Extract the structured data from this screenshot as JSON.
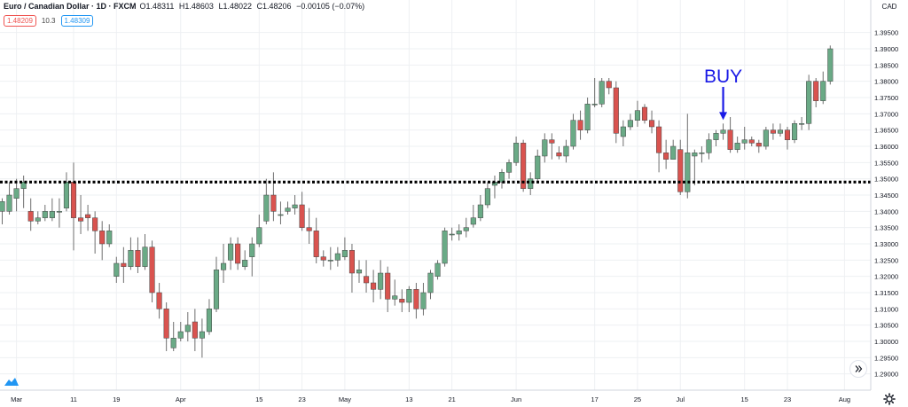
{
  "legend": {
    "symbol": "Euro / Canadian Dollar · 1D · FXCM",
    "ohlc": [
      "O1.48311",
      "H1.48603",
      "L1.48022",
      "C1.48206",
      "−0.00105 (−0.07%)"
    ],
    "bid": "1.48209",
    "spread": "10.3",
    "ask": "1.48309"
  },
  "currency": "CAD",
  "annotation": "BUY",
  "colors": {
    "up": "#6aaa86",
    "down": "#d9534f",
    "wick": "#6e6e6e",
    "grid": "#eef0f3",
    "annotation": "#1a1ae6",
    "level": "#000000"
  },
  "chart_data": {
    "type": "candlestick",
    "y_axis": {
      "min": 1.285,
      "max": 1.405,
      "ticks": [
        "1.39500",
        "1.39000",
        "1.38500",
        "1.38000",
        "1.37500",
        "1.37000",
        "1.36500",
        "1.36000",
        "1.35500",
        "1.35000",
        "1.34500",
        "1.34000",
        "1.33500",
        "1.33000",
        "1.32500",
        "1.32000",
        "1.31500",
        "1.31000",
        "1.30500",
        "1.30000",
        "1.29500",
        "1.29000"
      ]
    },
    "x_ticks": [
      {
        "i": 2,
        "label": "Mar"
      },
      {
        "i": 10,
        "label": "11"
      },
      {
        "i": 16,
        "label": "19"
      },
      {
        "i": 25,
        "label": "Apr"
      },
      {
        "i": 36,
        "label": "15"
      },
      {
        "i": 42,
        "label": "23"
      },
      {
        "i": 48,
        "label": "May"
      },
      {
        "i": 57,
        "label": "13"
      },
      {
        "i": 63,
        "label": "21"
      },
      {
        "i": 72,
        "label": "Jun"
      },
      {
        "i": 83,
        "label": "17"
      },
      {
        "i": 89,
        "label": "25"
      },
      {
        "i": 95,
        "label": "Jul"
      },
      {
        "i": 104,
        "label": "15"
      },
      {
        "i": 110,
        "label": "23"
      },
      {
        "i": 118,
        "label": "Aug"
      }
    ],
    "horizontal_level": 1.349,
    "buy_marker_index": 101,
    "candles": [
      [
        1.34,
        1.343,
        1.336,
        1.344
      ],
      [
        1.34,
        1.345,
        1.339,
        1.349
      ],
      [
        1.344,
        1.347,
        1.34,
        1.35
      ],
      [
        1.347,
        1.349,
        1.341,
        1.351
      ],
      [
        1.34,
        1.337,
        1.334,
        1.344
      ],
      [
        1.337,
        1.338,
        1.336,
        1.34
      ],
      [
        1.338,
        1.34,
        1.337,
        1.342
      ],
      [
        1.338,
        1.34,
        1.337,
        1.344
      ],
      [
        1.34,
        1.34,
        1.335,
        1.344
      ],
      [
        1.341,
        1.349,
        1.34,
        1.352
      ],
      [
        1.349,
        1.338,
        1.328,
        1.355
      ],
      [
        1.338,
        1.337,
        1.333,
        1.345
      ],
      [
        1.339,
        1.338,
        1.334,
        1.342
      ],
      [
        1.338,
        1.334,
        1.327,
        1.34
      ],
      [
        1.334,
        1.33,
        1.325,
        1.337
      ],
      [
        1.33,
        1.334,
        1.329,
        1.336
      ],
      [
        1.32,
        1.324,
        1.318,
        1.326
      ],
      [
        1.324,
        1.323,
        1.318,
        1.329
      ],
      [
        1.323,
        1.328,
        1.322,
        1.332
      ],
      [
        1.328,
        1.323,
        1.321,
        1.332
      ],
      [
        1.323,
        1.329,
        1.322,
        1.333
      ],
      [
        1.329,
        1.315,
        1.312,
        1.331
      ],
      [
        1.315,
        1.31,
        1.307,
        1.318
      ],
      [
        1.31,
        1.301,
        1.297,
        1.312
      ],
      [
        1.298,
        1.301,
        1.297,
        1.306
      ],
      [
        1.301,
        1.303,
        1.3,
        1.306
      ],
      [
        1.303,
        1.305,
        1.3,
        1.309
      ],
      [
        1.306,
        1.301,
        1.297,
        1.31
      ],
      [
        1.301,
        1.303,
        1.295,
        1.307
      ],
      [
        1.303,
        1.31,
        1.302,
        1.313
      ],
      [
        1.31,
        1.322,
        1.309,
        1.326
      ],
      [
        1.322,
        1.324,
        1.318,
        1.33
      ],
      [
        1.325,
        1.33,
        1.322,
        1.332
      ],
      [
        1.33,
        1.324,
        1.322,
        1.332
      ],
      [
        1.323,
        1.325,
        1.322,
        1.328
      ],
      [
        1.326,
        1.33,
        1.32,
        1.332
      ],
      [
        1.33,
        1.335,
        1.329,
        1.339
      ],
      [
        1.337,
        1.345,
        1.336,
        1.35
      ],
      [
        1.345,
        1.34,
        1.337,
        1.352
      ],
      [
        1.339,
        1.339,
        1.336,
        1.343
      ],
      [
        1.34,
        1.341,
        1.339,
        1.343
      ],
      [
        1.341,
        1.342,
        1.339,
        1.345
      ],
      [
        1.342,
        1.335,
        1.334,
        1.346
      ],
      [
        1.335,
        1.334,
        1.33,
        1.341
      ],
      [
        1.334,
        1.326,
        1.324,
        1.338
      ],
      [
        1.326,
        1.325,
        1.323,
        1.328
      ],
      [
        1.325,
        1.325,
        1.322,
        1.329
      ],
      [
        1.325,
        1.327,
        1.323,
        1.329
      ],
      [
        1.326,
        1.328,
        1.325,
        1.332
      ],
      [
        1.328,
        1.321,
        1.315,
        1.33
      ],
      [
        1.321,
        1.322,
        1.318,
        1.325
      ],
      [
        1.32,
        1.318,
        1.315,
        1.325
      ],
      [
        1.318,
        1.316,
        1.312,
        1.322
      ],
      [
        1.316,
        1.321,
        1.313,
        1.325
      ],
      [
        1.321,
        1.313,
        1.309,
        1.323
      ],
      [
        1.313,
        1.314,
        1.311,
        1.319
      ],
      [
        1.313,
        1.312,
        1.309,
        1.316
      ],
      [
        1.312,
        1.316,
        1.309,
        1.317
      ],
      [
        1.316,
        1.31,
        1.307,
        1.318
      ],
      [
        1.31,
        1.315,
        1.308,
        1.318
      ],
      [
        1.315,
        1.321,
        1.313,
        1.322
      ],
      [
        1.32,
        1.324,
        1.319,
        1.325
      ],
      [
        1.324,
        1.334,
        1.323,
        1.335
      ],
      [
        1.333,
        1.333,
        1.331,
        1.335
      ],
      [
        1.333,
        1.334,
        1.331,
        1.336
      ],
      [
        1.334,
        1.335,
        1.332,
        1.338
      ],
      [
        1.336,
        1.338,
        1.335,
        1.342
      ],
      [
        1.338,
        1.342,
        1.337,
        1.345
      ],
      [
        1.342,
        1.347,
        1.341,
        1.349
      ],
      [
        1.348,
        1.349,
        1.344,
        1.351
      ],
      [
        1.349,
        1.352,
        1.347,
        1.353
      ],
      [
        1.352,
        1.355,
        1.35,
        1.356
      ],
      [
        1.355,
        1.361,
        1.354,
        1.363
      ],
      [
        1.361,
        1.347,
        1.346,
        1.362
      ],
      [
        1.347,
        1.35,
        1.345,
        1.352
      ],
      [
        1.35,
        1.357,
        1.349,
        1.359
      ],
      [
        1.357,
        1.362,
        1.355,
        1.364
      ],
      [
        1.362,
        1.361,
        1.356,
        1.364
      ],
      [
        1.358,
        1.357,
        1.356,
        1.36
      ],
      [
        1.357,
        1.36,
        1.355,
        1.362
      ],
      [
        1.36,
        1.368,
        1.359,
        1.37
      ],
      [
        1.368,
        1.365,
        1.362,
        1.371
      ],
      [
        1.365,
        1.373,
        1.364,
        1.375
      ],
      [
        1.373,
        1.373,
        1.372,
        1.381
      ],
      [
        1.373,
        1.38,
        1.372,
        1.381
      ],
      [
        1.38,
        1.378,
        1.376,
        1.381
      ],
      [
        1.378,
        1.364,
        1.361,
        1.38
      ],
      [
        1.363,
        1.366,
        1.36,
        1.368
      ],
      [
        1.366,
        1.368,
        1.365,
        1.37
      ],
      [
        1.368,
        1.371,
        1.366,
        1.374
      ],
      [
        1.372,
        1.368,
        1.367,
        1.373
      ],
      [
        1.368,
        1.366,
        1.364,
        1.371
      ],
      [
        1.366,
        1.358,
        1.352,
        1.368
      ],
      [
        1.358,
        1.356,
        1.353,
        1.362
      ],
      [
        1.356,
        1.36,
        1.356,
        1.362
      ],
      [
        1.359,
        1.346,
        1.345,
        1.362
      ],
      [
        1.346,
        1.358,
        1.344,
        1.37
      ],
      [
        1.357,
        1.358,
        1.348,
        1.359
      ],
      [
        1.358,
        1.358,
        1.355,
        1.36
      ],
      [
        1.358,
        1.362,
        1.356,
        1.364
      ],
      [
        1.362,
        1.364,
        1.36,
        1.365
      ],
      [
        1.364,
        1.365,
        1.362,
        1.367
      ],
      [
        1.365,
        1.359,
        1.358,
        1.369
      ],
      [
        1.359,
        1.361,
        1.358,
        1.363
      ],
      [
        1.361,
        1.362,
        1.359,
        1.366
      ],
      [
        1.362,
        1.361,
        1.36,
        1.363
      ],
      [
        1.361,
        1.36,
        1.358,
        1.362
      ],
      [
        1.36,
        1.365,
        1.359,
        1.366
      ],
      [
        1.365,
        1.364,
        1.362,
        1.367
      ],
      [
        1.364,
        1.365,
        1.363,
        1.367
      ],
      [
        1.365,
        1.362,
        1.359,
        1.366
      ],
      [
        1.362,
        1.367,
        1.361,
        1.368
      ],
      [
        1.367,
        1.367,
        1.365,
        1.369
      ],
      [
        1.367,
        1.38,
        1.365,
        1.382
      ],
      [
        1.38,
        1.374,
        1.372,
        1.381
      ],
      [
        1.374,
        1.38,
        1.373,
        1.383
      ],
      [
        1.38,
        1.39,
        1.379,
        1.391
      ]
    ]
  }
}
